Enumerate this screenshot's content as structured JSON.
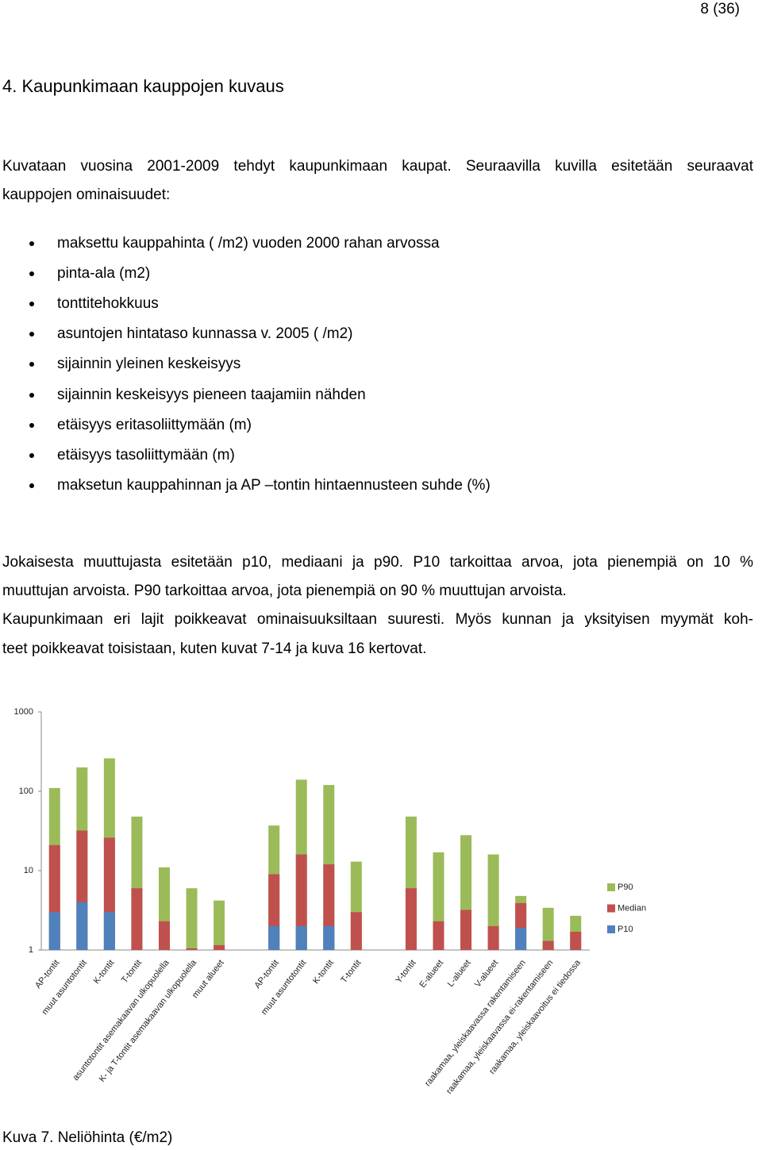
{
  "page_number": "8 (36)",
  "heading": "4. Kaupunkimaan kauppojen kuvaus",
  "intro": [
    "Kuvataan vuosina 2001-2009 tehdyt kaupunkimaan kaupat. Seuraavilla kuvilla esitetään seuraavat",
    "kauppojen ominaisuudet:"
  ],
  "bullets": [
    "maksettu kauppahinta ( /m2) vuoden 2000 rahan arvossa",
    "pinta-ala (m2)",
    "tonttitehokkuus",
    "asuntojen hintataso kunnassa v. 2005 ( /m2)",
    "sijainnin yleinen keskeisyys",
    "sijainnin keskeisyys pieneen taajamiin nähden",
    "etäisyys eritasoliittymään (m)",
    "etäisyys tasoliittymään (m)",
    "maksetun kauppahinnan ja AP –tontin hintaennusteen suhde (%)"
  ],
  "paragraph": [
    "Jokaisesta muuttujasta esitetään p10, mediaani ja p90. P10 tarkoittaa arvoa, jota pienempiä on 10 %",
    "muuttujan arvoista. P90 tarkoittaa arvoa, jota pienempiä on 90 % muuttujan arvoista.",
    "Kaupunkimaan eri lajit poikkeavat ominaisuuksiltaan suuresti. Myös kunnan ja yksityisen myymät koh-",
    "teet poikkeavat toisistaan, kuten kuvat 7-14 ja kuva 16 kertovat."
  ],
  "chart_data": {
    "type": "bar",
    "log_scale": true,
    "grid": false,
    "legend": "right",
    "categories": [
      "AP-tontit",
      "muut asuntotontit",
      "K-tontit",
      "T-tontit",
      "asuntotontit asemakaavan ulkopuolella",
      "K- ja T-tontit asemakaavan ulkopuolella",
      "muut alueet",
      null,
      "AP-tontit",
      "muut asuntotontit",
      "K-tontit",
      "T-tontit",
      null,
      "Y-tontit",
      "E-alueet",
      "L-alueet",
      "V-alueet",
      "raakamaa, yleiskaavassa rakentamiseen",
      "raakamaa, yleiskaavassa ei-rakentamiseen",
      "raakamaa, yleiskaavoitus ei tiedossa"
    ],
    "series": [
      {
        "name": "P90",
        "color": "#9bbb59",
        "values": [
          110,
          200,
          260,
          48,
          11,
          6,
          4.2,
          null,
          37,
          140,
          120,
          13,
          null,
          48,
          17,
          28,
          16,
          4.8,
          3.4,
          2.7
        ]
      },
      {
        "name": "Median",
        "color": "#c0504d",
        "values": [
          21,
          32,
          26,
          6,
          2.3,
          1.05,
          1.15,
          null,
          9,
          16,
          12,
          3,
          null,
          6,
          2.3,
          3.2,
          2,
          3.9,
          1.3,
          1.7
        ]
      },
      {
        "name": "P10",
        "color": "#4f81bd",
        "values": [
          3,
          4,
          3,
          null,
          null,
          null,
          null,
          null,
          2,
          2,
          2,
          null,
          null,
          null,
          null,
          null,
          null,
          1.9,
          null,
          null
        ]
      }
    ],
    "ylim": [
      1,
      1000
    ],
    "yticks": [
      1,
      10,
      100,
      1000
    ]
  },
  "caption": "Kuva 7. Neliöhinta (€/m2)"
}
